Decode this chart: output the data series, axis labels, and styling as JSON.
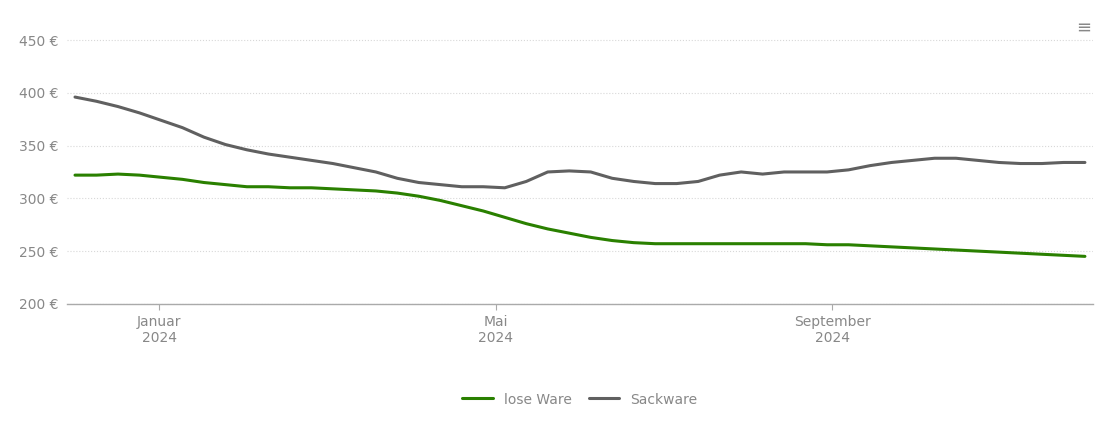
{
  "background_color": "#ffffff",
  "grid_color": "#d8d8d8",
  "axis_color": "#aaaaaa",
  "tick_label_color": "#888888",
  "ylim": [
    200,
    460
  ],
  "yticks": [
    200,
    250,
    300,
    350,
    400,
    450
  ],
  "ytick_labels": [
    "200 €",
    "250 €",
    "300 €",
    "350 €",
    "400 €",
    "450 €"
  ],
  "lose_ware_color": "#2a8000",
  "sackware_color": "#606060",
  "line_width": 2.2,
  "legend_labels": [
    "lose Ware",
    "Sackware"
  ],
  "lose_ware": [
    322,
    322,
    323,
    322,
    320,
    318,
    315,
    313,
    311,
    311,
    310,
    310,
    309,
    308,
    307,
    305,
    302,
    298,
    293,
    288,
    282,
    276,
    271,
    267,
    263,
    260,
    258,
    257,
    257,
    257,
    257,
    257,
    257,
    257,
    257,
    256,
    256,
    255,
    254,
    253,
    252,
    251,
    250,
    249,
    248,
    247,
    246,
    245
  ],
  "sackware": [
    396,
    392,
    387,
    381,
    374,
    367,
    358,
    351,
    346,
    342,
    339,
    336,
    333,
    329,
    325,
    319,
    315,
    313,
    311,
    311,
    310,
    316,
    325,
    326,
    325,
    319,
    316,
    314,
    314,
    316,
    322,
    325,
    323,
    325,
    325,
    325,
    327,
    331,
    334,
    336,
    338,
    338,
    336,
    334,
    333,
    333,
    334,
    334
  ],
  "n_months": 12,
  "xtick_months": [
    1,
    5,
    9
  ],
  "xtick_labels": [
    "Januar\n2024",
    "Mai\n2024",
    "September\n2024"
  ]
}
